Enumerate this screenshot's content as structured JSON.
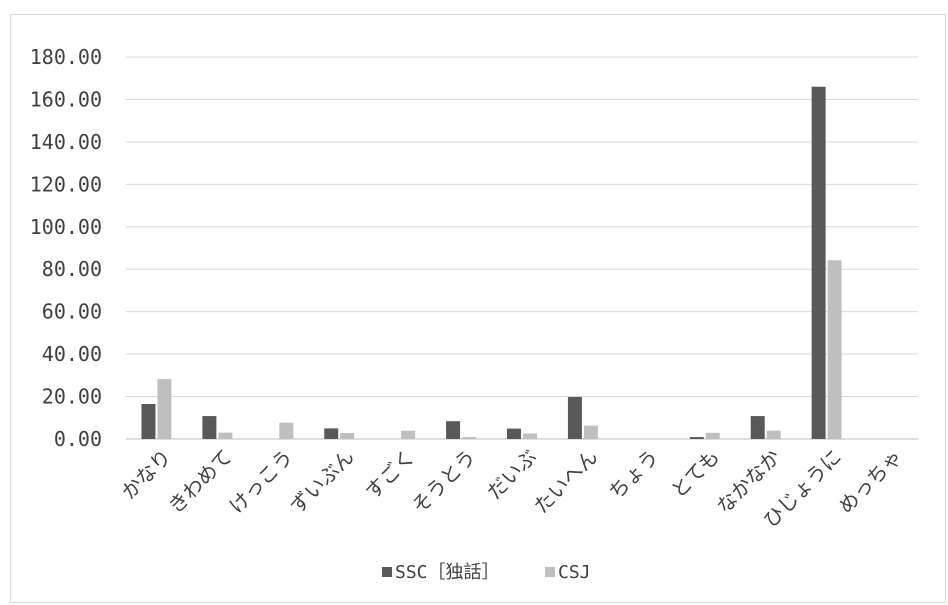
{
  "chart_data": {
    "type": "bar",
    "categories": [
      "かなり",
      "きわめて",
      "けっこう",
      "ずいぶん",
      "すごく",
      "そうとう",
      "だいぶ",
      "たいへん",
      "ちょう",
      "とても",
      "なかなか",
      "ひじょうに",
      "めっちゃ"
    ],
    "series": [
      {
        "name": "SSC［独話］",
        "color": "#595959",
        "values": [
          16.5,
          10.8,
          0,
          5.0,
          0,
          8.4,
          4.9,
          19.8,
          0,
          0.9,
          10.8,
          166.0,
          0
        ]
      },
      {
        "name": "CSJ",
        "color": "#bfbfbf",
        "values": [
          28.2,
          3.0,
          7.7,
          2.8,
          3.9,
          0.9,
          2.6,
          6.3,
          0,
          2.9,
          3.9,
          84.2,
          0
        ]
      }
    ],
    "yticks": [
      "0.00",
      "20.00",
      "40.00",
      "60.00",
      "80.00",
      "100.00",
      "120.00",
      "140.00",
      "160.00",
      "180.00"
    ],
    "ylim": [
      0,
      180
    ],
    "grid": true,
    "legend_position": "bottom"
  }
}
